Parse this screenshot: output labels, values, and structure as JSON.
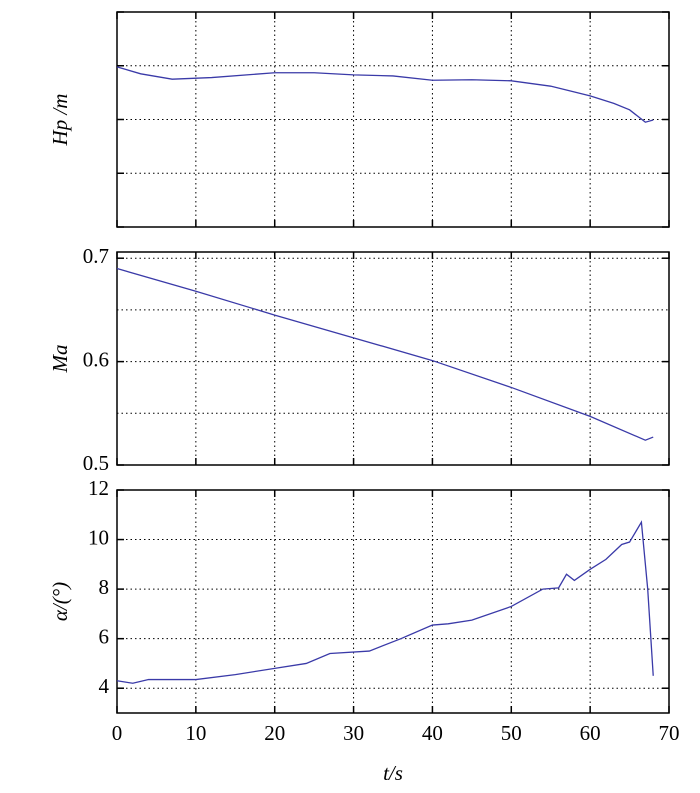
{
  "chart_data": [
    {
      "type": "line",
      "ylabel": "Hp /m",
      "show_y_tick_labels": false,
      "show_x_tick_labels": false,
      "x": [
        0,
        3,
        7,
        12,
        20,
        25,
        30,
        35,
        40,
        45,
        50,
        55,
        60,
        63,
        65,
        67,
        68
      ],
      "series": [
        {
          "name": "Hp",
          "color": "#3a3aa8",
          "values": [
            2.98,
            2.85,
            2.75,
            2.78,
            2.87,
            2.87,
            2.83,
            2.81,
            2.73,
            2.74,
            2.72,
            2.62,
            2.44,
            2.3,
            2.18,
            1.95,
            1.99
          ]
        }
      ],
      "xlim": [
        0,
        70
      ],
      "xticks": [
        0,
        10,
        20,
        30,
        40,
        50,
        60,
        70
      ],
      "ylim": [
        0,
        4
      ],
      "yticks": [
        0,
        1,
        2,
        3,
        4
      ],
      "grid": true
    },
    {
      "type": "line",
      "ylabel": "Ma",
      "show_y_tick_labels": true,
      "show_x_tick_labels": false,
      "x": [
        0,
        10,
        20,
        30,
        40,
        50,
        60,
        67,
        68
      ],
      "series": [
        {
          "name": "Ma",
          "color": "#3a3aa8",
          "values": [
            0.69,
            0.668,
            0.645,
            0.623,
            0.601,
            0.575,
            0.547,
            0.524,
            0.527
          ]
        }
      ],
      "xlim": [
        0,
        70
      ],
      "xticks": [
        0,
        10,
        20,
        30,
        40,
        50,
        60,
        70
      ],
      "ylim": [
        0.5,
        0.706
      ],
      "yticks": [
        0.5,
        0.6,
        0.7
      ],
      "minor_grid_y": [
        0.55,
        0.65
      ],
      "grid": true
    },
    {
      "type": "line",
      "ylabel": "α/(°)",
      "xlabel": "t/s",
      "show_y_tick_labels": true,
      "show_x_tick_labels": true,
      "x": [
        0,
        2,
        4,
        10,
        15,
        20,
        24,
        27,
        32,
        36,
        40,
        42,
        45,
        50,
        54,
        56,
        57,
        58,
        60,
        62,
        64,
        65,
        66.5,
        67.3,
        68
      ],
      "series": [
        {
          "name": "α",
          "color": "#3a3aa8",
          "values": [
            4.3,
            4.2,
            4.35,
            4.35,
            4.55,
            4.8,
            5.0,
            5.4,
            5.5,
            6.0,
            6.55,
            6.6,
            6.75,
            7.3,
            8.0,
            8.05,
            8.6,
            8.35,
            8.8,
            9.2,
            9.8,
            9.9,
            10.7,
            8.0,
            4.5
          ]
        }
      ],
      "xlim": [
        0,
        70
      ],
      "xticks": [
        0,
        10,
        20,
        30,
        40,
        50,
        60,
        70
      ],
      "ylim": [
        3,
        12
      ],
      "yticks": [
        4,
        6,
        8,
        10,
        12
      ],
      "grid": true
    }
  ]
}
